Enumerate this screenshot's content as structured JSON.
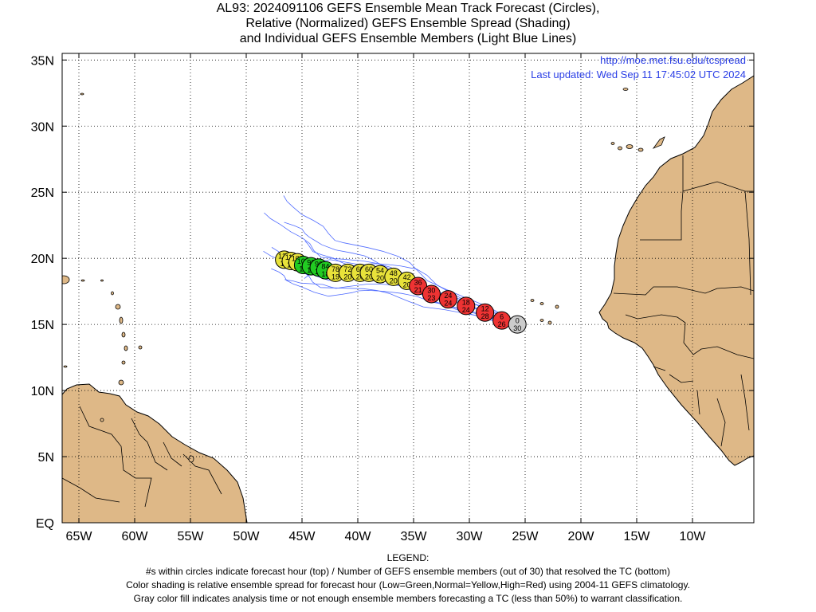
{
  "title": {
    "line1": "AL93: 2024091106 GEFS Ensemble Mean Track Forecast (Circles),",
    "line2": "Relative (Normalized) GEFS Ensemble Spread (Shading)",
    "line3": "and Individual GEFS Ensemble Members (Light Blue Lines)"
  },
  "source": {
    "url": "http://moe.met.fsu.edu/tcspread",
    "updated": "Last updated: Wed Sep 11 17:45:02 UTC 2024"
  },
  "axes": {
    "x_labels": [
      "65W",
      "60W",
      "55W",
      "50W",
      "45W",
      "40W",
      "35W",
      "30W",
      "25W",
      "20W",
      "15W",
      "10W"
    ],
    "y_labels": [
      "35N",
      "30N",
      "25N",
      "20N",
      "15N",
      "10N",
      "5N",
      "EQ"
    ],
    "lon_range": [
      -66.5,
      -4.5
    ],
    "lat_range": [
      0,
      35.5
    ]
  },
  "colors": {
    "land": "#deb887",
    "ocean": "#ffffff",
    "member_track": "#4f6bff",
    "low": "#22cc22",
    "normal": "#e8e23a",
    "high": "#ee3333",
    "analysis": "#cccccc",
    "url": "#2a3ee6"
  },
  "track": [
    {
      "hour": "0",
      "members": "30",
      "lon": -25.7,
      "lat": 15.0,
      "spread": "analysis"
    },
    {
      "hour": "6",
      "members": "26",
      "lon": -27.1,
      "lat": 15.3,
      "spread": "high"
    },
    {
      "hour": "12",
      "members": "28",
      "lon": -28.6,
      "lat": 15.9,
      "spread": "high"
    },
    {
      "hour": "18",
      "members": "24",
      "lon": -30.3,
      "lat": 16.4,
      "spread": "high"
    },
    {
      "hour": "24",
      "members": "24",
      "lon": -31.9,
      "lat": 16.9,
      "spread": "high"
    },
    {
      "hour": "30",
      "members": "23",
      "lon": -33.4,
      "lat": 17.3,
      "spread": "high"
    },
    {
      "hour": "36",
      "members": "21",
      "lon": -34.6,
      "lat": 17.9,
      "spread": "high"
    },
    {
      "hour": "42",
      "members": "20",
      "lon": -35.6,
      "lat": 18.3,
      "spread": "normal"
    },
    {
      "hour": "48",
      "members": "20",
      "lon": -36.8,
      "lat": 18.6,
      "spread": "normal"
    },
    {
      "hour": "54",
      "members": "20",
      "lon": -38.0,
      "lat": 18.8,
      "spread": "normal"
    },
    {
      "hour": "60",
      "members": "20",
      "lon": -39.0,
      "lat": 18.9,
      "spread": "normal"
    },
    {
      "hour": "66",
      "members": "20",
      "lon": -39.8,
      "lat": 18.9,
      "spread": "normal"
    },
    {
      "hour": "72",
      "members": "20",
      "lon": -40.9,
      "lat": 18.9,
      "spread": "normal"
    },
    {
      "hour": "78",
      "members": "19",
      "lon": -42.0,
      "lat": 18.9,
      "spread": "normal"
    },
    {
      "hour": "84",
      "members": "18",
      "lon": -42.9,
      "lat": 19.1,
      "spread": "low"
    },
    {
      "hour": "90",
      "members": "18",
      "lon": -43.5,
      "lat": 19.3,
      "spread": "low"
    },
    {
      "hour": "96",
      "members": "18",
      "lon": -44.2,
      "lat": 19.4,
      "spread": "low"
    },
    {
      "hour": "102",
      "members": "18",
      "lon": -44.9,
      "lat": 19.5,
      "spread": "low"
    },
    {
      "hour": "108",
      "members": "18",
      "lon": -45.4,
      "lat": 19.7,
      "spread": "normal"
    },
    {
      "hour": "114",
      "members": "17",
      "lon": -46.0,
      "lat": 19.8,
      "spread": "normal"
    },
    {
      "hour": "120",
      "members": "17",
      "lon": -46.6,
      "lat": 19.9,
      "spread": "normal"
    }
  ],
  "legend": {
    "heading": "LEGEND:",
    "line1": "#s within circles indicate forecast hour (top) / Number of GEFS ensemble members (out of 30) that resolved the TC (bottom)",
    "line2": "Color shading is relative ensemble spread for forecast hour (Low=Green,Normal=Yellow,High=Red) using 2004-11 GEFS climatology.",
    "line3": "Gray color fill indicates analysis time or not enough ensemble members forecasting a TC (less than 50%) to warrant classification."
  }
}
